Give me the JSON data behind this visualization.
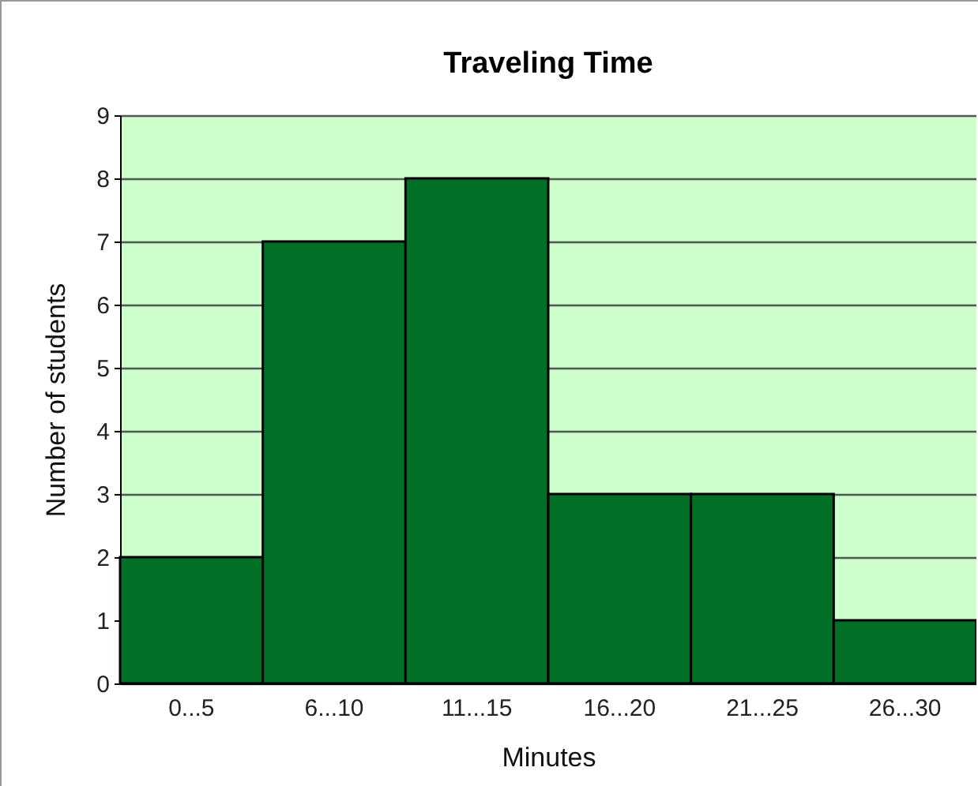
{
  "chart_data": {
    "type": "bar",
    "title": "Traveling Time",
    "xlabel": "Minutes",
    "ylabel": "Number of students",
    "categories": [
      "0...5",
      "6...10",
      "11...15",
      "16...20",
      "21...25",
      "26...30"
    ],
    "values": [
      2,
      7,
      8,
      3,
      3,
      1
    ],
    "color": "#007026",
    "ylim": [
      0,
      9
    ],
    "yticks": [
      0,
      1,
      2,
      3,
      4,
      5,
      6,
      7,
      8,
      9
    ],
    "grid": "y"
  }
}
